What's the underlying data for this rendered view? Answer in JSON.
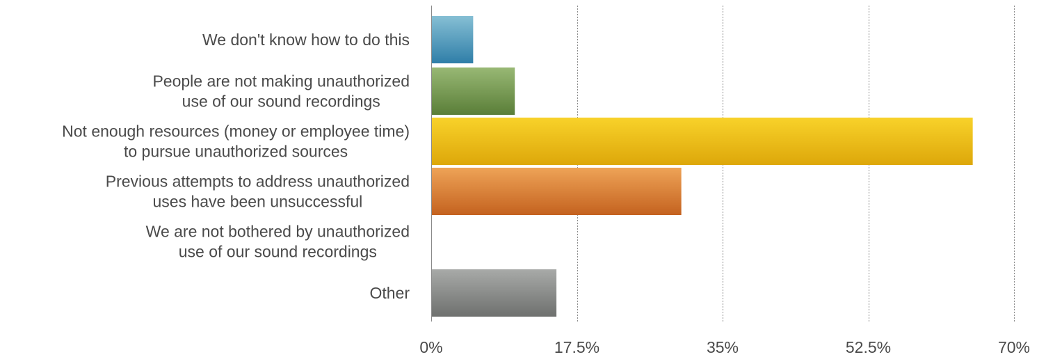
{
  "chart_data": {
    "type": "bar",
    "orientation": "horizontal",
    "categories": [
      [
        "We don't know how to do this"
      ],
      [
        "People are not making unauthorized",
        "use of our sound recordings"
      ],
      [
        "Not enough resources (money or employee time)",
        "to pursue unauthorized sources"
      ],
      [
        "Previous attempts to address unauthorized",
        "uses have been unsuccessful"
      ],
      [
        "We are not bothered by unauthorized",
        "use of our sound recordings"
      ],
      [
        "Other"
      ]
    ],
    "values": [
      5,
      10,
      65,
      30,
      0,
      15
    ],
    "xlim": [
      0,
      70
    ],
    "ticks": [
      0,
      17.5,
      35,
      52.5,
      70
    ],
    "tick_labels": [
      "0%",
      "17.5%",
      "35%",
      "52.5%",
      "70%"
    ],
    "grid": "vertical-dotted",
    "legend": "none",
    "colors": [
      [
        "#86bfd4",
        "#2f7ea8"
      ],
      [
        "#98b874",
        "#5a7e38"
      ],
      [
        "#f8d22a",
        "#dda70a"
      ],
      [
        "#eea357",
        "#c4621f"
      ],
      [
        "#cccccc",
        "#999999"
      ],
      [
        "#a8aaa8",
        "#6e706e"
      ]
    ],
    "xlabel": "",
    "ylabel": "",
    "title": ""
  }
}
